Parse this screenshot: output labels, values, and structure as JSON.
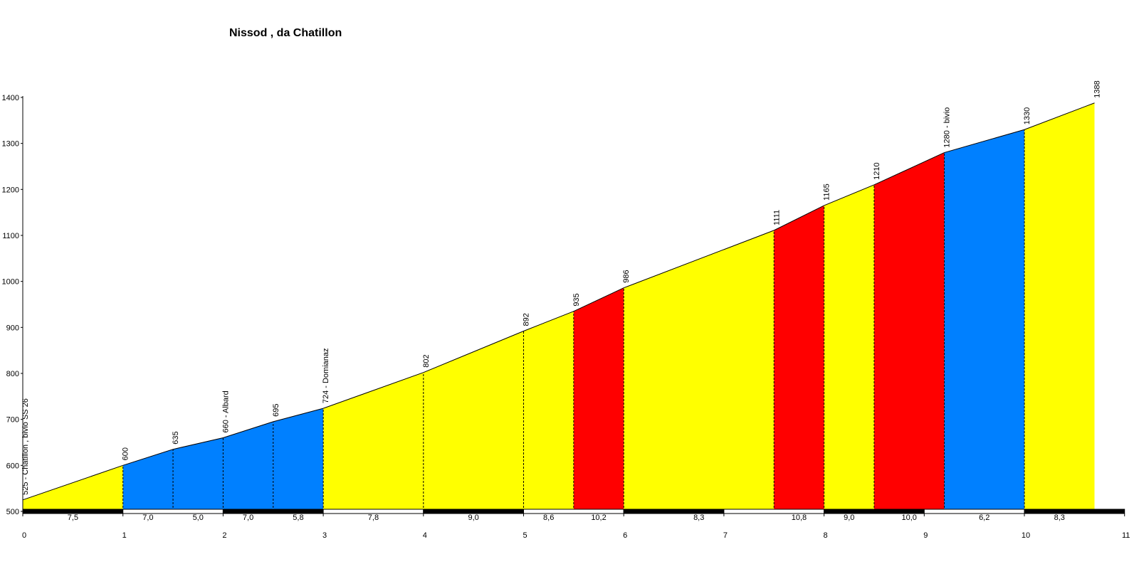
{
  "chart_data": {
    "type": "area",
    "title": "Nissod , da Chatillon",
    "xlabel": "",
    "ylabel": "",
    "xlim": [
      0,
      11
    ],
    "ylim": [
      500,
      1400
    ],
    "x_ticks": [
      "0",
      "1",
      "2",
      "3",
      "4",
      "5",
      "6",
      "7",
      "8",
      "9",
      "10",
      "11"
    ],
    "y_ticks": [
      "500",
      "600",
      "700",
      "800",
      "900",
      "1000",
      "1100",
      "1200",
      "1300",
      "1400"
    ],
    "colors": {
      "yellow": "#ffff00",
      "blue": "#0080ff",
      "red": "#ff0000"
    },
    "points": [
      {
        "x": 0,
        "y": 525,
        "label": "525 - Chatillon , bivio SS 26"
      },
      {
        "x": 1,
        "y": 600,
        "label": "600"
      },
      {
        "x": 1.5,
        "y": 635,
        "label": "635"
      },
      {
        "x": 2,
        "y": 660,
        "label": "660 - Albard"
      },
      {
        "x": 2.5,
        "y": 695,
        "label": "695"
      },
      {
        "x": 3,
        "y": 724,
        "label": "724 - Domianaz"
      },
      {
        "x": 4,
        "y": 802,
        "label": "802"
      },
      {
        "x": 5,
        "y": 892,
        "label": "892"
      },
      {
        "x": 5.5,
        "y": 935,
        "label": "935"
      },
      {
        "x": 6,
        "y": 986,
        "label": "986"
      },
      {
        "x": 7.5,
        "y": 1111,
        "label": "1111"
      },
      {
        "x": 8,
        "y": 1165,
        "label": "1165"
      },
      {
        "x": 8.5,
        "y": 1210,
        "label": "1210"
      },
      {
        "x": 9.2,
        "y": 1280,
        "label": "1280 - bivio"
      },
      {
        "x": 10,
        "y": 1330,
        "label": "1330"
      },
      {
        "x": 10.7,
        "y": 1388,
        "label": "1388"
      }
    ],
    "segments": [
      {
        "x0": 0,
        "x1": 1,
        "gradient": "7,5",
        "color": "yellow"
      },
      {
        "x0": 1,
        "x1": 1.5,
        "gradient": "7,0",
        "color": "blue"
      },
      {
        "x0": 1.5,
        "x1": 2,
        "gradient": "5,0",
        "color": "blue"
      },
      {
        "x0": 2,
        "x1": 2.5,
        "gradient": "7,0",
        "color": "blue"
      },
      {
        "x0": 2.5,
        "x1": 3,
        "gradient": "5,8",
        "color": "blue"
      },
      {
        "x0": 3,
        "x1": 4,
        "gradient": "7,8",
        "color": "yellow"
      },
      {
        "x0": 4,
        "x1": 5,
        "gradient": "9,0",
        "color": "yellow"
      },
      {
        "x0": 5,
        "x1": 5.5,
        "gradient": "8,6",
        "color": "yellow"
      },
      {
        "x0": 5.5,
        "x1": 6,
        "gradient": "10,2",
        "color": "red"
      },
      {
        "x0": 6,
        "x1": 7.5,
        "gradient": "8,3",
        "color": "yellow"
      },
      {
        "x0": 7.5,
        "x1": 8,
        "gradient": "10,8",
        "color": "red"
      },
      {
        "x0": 8,
        "x1": 8.5,
        "gradient": "9,0",
        "color": "yellow"
      },
      {
        "x0": 8.5,
        "x1": 9.2,
        "gradient": "10,0",
        "color": "red"
      },
      {
        "x0": 9.2,
        "x1": 10,
        "gradient": "6,2",
        "color": "blue"
      },
      {
        "x0": 10,
        "x1": 10.7,
        "gradient": "8,3",
        "color": "yellow"
      }
    ]
  }
}
